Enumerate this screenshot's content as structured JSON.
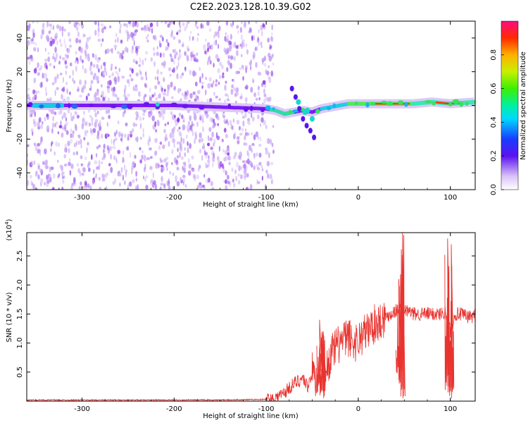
{
  "title": "C2E2.2023.128.10.39.G02",
  "colors": {
    "snr_line": "#e8332f",
    "band": "#7a1cf0",
    "scatter_light": "#c9a7f5",
    "scatter_dark": "#8a2be2",
    "background": "#ffffff"
  },
  "chart_data": [
    {
      "type": "heatmap",
      "name": "spectrogram",
      "xlabel": "Height of straight line (km)",
      "ylabel": "Frequency (Hz)",
      "xlim": [
        -360,
        127
      ],
      "ylim": [
        -50,
        50
      ],
      "xticks": [
        -300,
        -200,
        -100,
        0,
        100
      ],
      "xtick_labels": [
        "-300",
        "-200",
        "-100",
        "0",
        "100"
      ],
      "yticks": [
        40,
        20,
        0,
        -20,
        -40
      ],
      "ytick_labels": [
        "40",
        "20",
        "0",
        "-20",
        "-40"
      ],
      "noise_region_x": [
        -360,
        -92
      ],
      "carrier_trace": {
        "x": [
          -360,
          -300,
          -200,
          -100,
          -90,
          -80,
          -70,
          -60,
          -50,
          -40,
          -30,
          -20,
          -10,
          0,
          20,
          40,
          60,
          80,
          100,
          127
        ],
        "y": [
          0,
          0,
          0,
          -2,
          -3,
          -5,
          -4,
          -3,
          -4,
          -2,
          -1,
          0,
          1,
          1,
          1,
          1,
          1,
          2,
          1,
          2
        ]
      },
      "colorbar": {
        "label": "Normalized spectral amplitude",
        "range": [
          0,
          1
        ],
        "ticks": [
          0.0,
          0.2,
          0.4,
          0.6,
          0.8
        ],
        "tick_labels": [
          "0.0",
          "0.2",
          "0.4",
          "0.6",
          "0.8"
        ]
      }
    },
    {
      "type": "line",
      "name": "snr",
      "xlabel": "Height of straight line (km)",
      "ylabel": "SNR (10 * v/v)",
      "scale_label": "(x10",
      "scale_exponent": "4",
      "scale_suffix": ")",
      "xlim": [
        -360,
        127
      ],
      "ylim": [
        0,
        2.9
      ],
      "xticks": [
        -300,
        -200,
        -100,
        0,
        100
      ],
      "xtick_labels": [
        "-300",
        "-200",
        "-100",
        "0",
        "100"
      ],
      "yticks": [
        0.5,
        1.0,
        1.5,
        2.0,
        2.5
      ],
      "ytick_labels": [
        "0.5",
        "1.0",
        "1.5",
        "2.0",
        "2.5"
      ],
      "series": [
        {
          "name": "SNR",
          "x": [
            -360,
            -250,
            -150,
            -100,
            -90,
            -80,
            -70,
            -60,
            -55,
            -50,
            -45,
            -40,
            -35,
            -30,
            -25,
            -20,
            -15,
            -10,
            -5,
            0,
            5,
            10,
            15,
            20,
            25,
            30,
            35,
            40,
            45,
            50,
            55,
            60,
            70,
            80,
            90,
            95,
            100,
            105,
            110,
            120,
            127
          ],
          "values": [
            0.02,
            0.02,
            0.02,
            0.03,
            0.05,
            0.15,
            0.3,
            0.4,
            0.25,
            0.5,
            0.35,
            0.9,
            0.5,
            0.8,
            0.9,
            1.0,
            1.05,
            1.1,
            1.0,
            1.05,
            1.15,
            1.2,
            1.3,
            1.35,
            1.4,
            1.45,
            1.5,
            1.55,
            1.6,
            1.55,
            1.55,
            1.5,
            1.5,
            1.5,
            1.5,
            1.55,
            1.2,
            1.5,
            1.5,
            1.45,
            1.47
          ]
        }
      ],
      "spikes": [
        {
          "x": -42,
          "peak": 1.4,
          "trough": 0.1
        },
        {
          "x": -38,
          "peak": 1.2,
          "trough": 0.05
        },
        {
          "x": 44,
          "peak": 2.1,
          "trough": 0.3
        },
        {
          "x": 48,
          "peak": 2.9,
          "trough": 0.05
        },
        {
          "x": 97,
          "peak": 2.8,
          "trough": 0.15
        },
        {
          "x": 101,
          "peak": 2.7,
          "trough": 0.05
        }
      ]
    }
  ]
}
